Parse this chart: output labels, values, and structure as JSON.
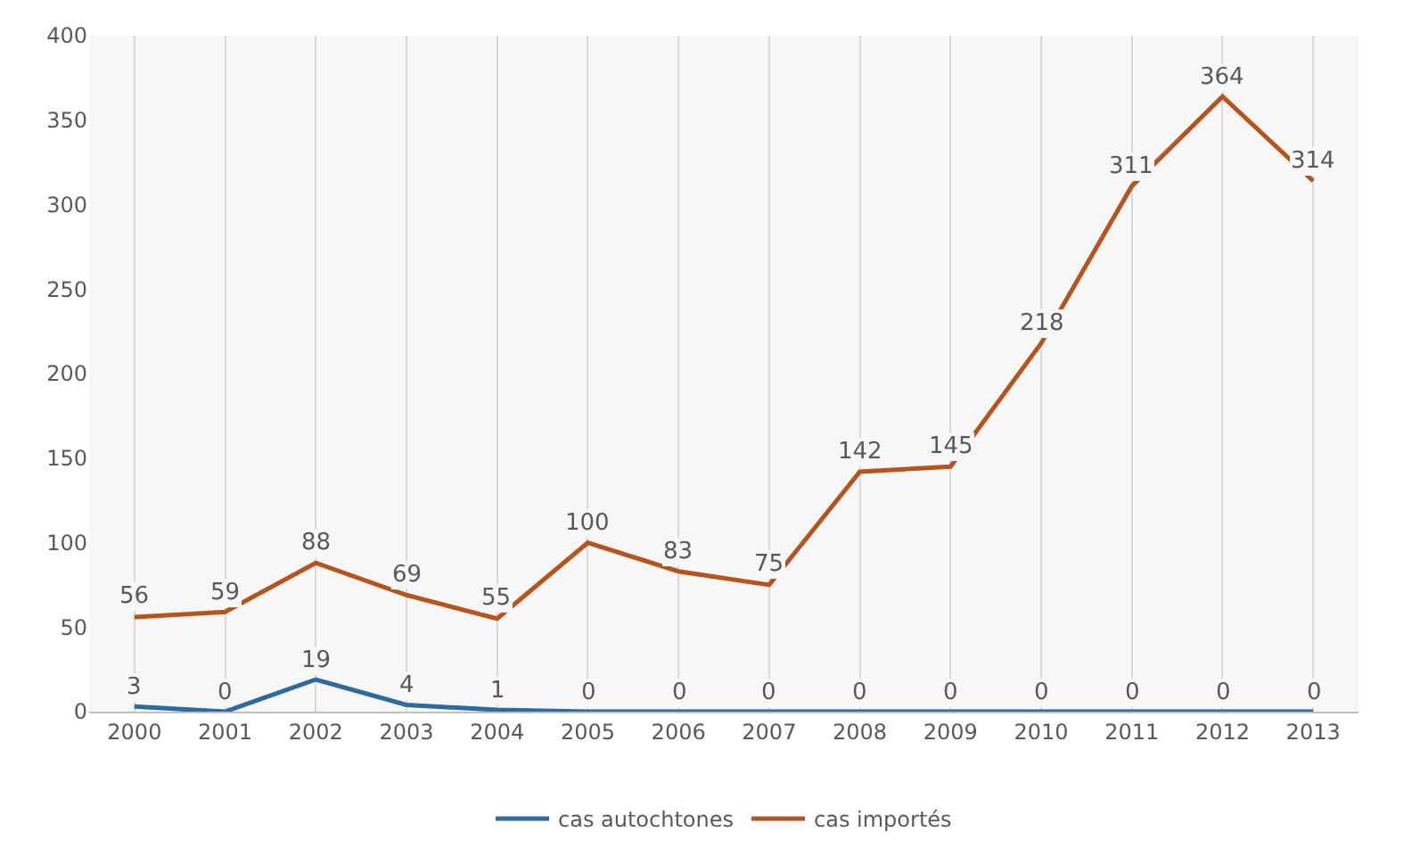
{
  "chart_data": {
    "type": "line",
    "categories": [
      "2000",
      "2001",
      "2002",
      "2003",
      "2004",
      "2005",
      "2006",
      "2007",
      "2008",
      "2009",
      "2010",
      "2011",
      "2012",
      "2013"
    ],
    "series": [
      {
        "name": "cas autochtones",
        "color": "#2e6a9e",
        "values": [
          3,
          0,
          19,
          4,
          1,
          0,
          0,
          0,
          0,
          0,
          0,
          0,
          0,
          0
        ]
      },
      {
        "name": "cas importés",
        "color": "#b5551d",
        "values": [
          56,
          59,
          88,
          69,
          55,
          100,
          83,
          75,
          142,
          145,
          218,
          311,
          364,
          314
        ]
      }
    ],
    "ylim": [
      0,
      400
    ],
    "yticks": [
      0,
      50,
      100,
      150,
      200,
      250,
      300,
      350,
      400
    ],
    "grid": "x",
    "legend": "bottom",
    "data_labels": true,
    "marker": "none",
    "line_style": "solid"
  }
}
